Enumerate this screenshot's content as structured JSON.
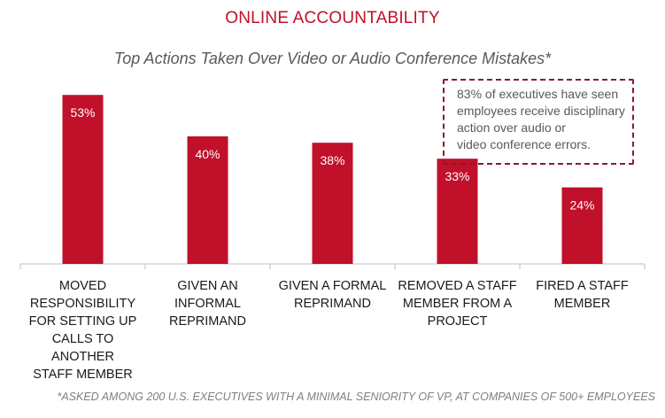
{
  "chart_data": {
    "type": "bar",
    "title": "ONLINE ACCOUNTABILITY",
    "subtitle": "Top Actions Taken Over Video or Audio Conference Mistakes*",
    "categories": [
      [
        "MOVED",
        "RESPONSIBILITY",
        "FOR SETTING UP",
        "CALLS TO ANOTHER",
        "STAFF MEMBER"
      ],
      [
        "GIVEN AN INFORMAL",
        "REPRIMAND"
      ],
      [
        "GIVEN A FORMAL",
        "REPRIMAND"
      ],
      [
        "REMOVED A STAFF",
        "MEMBER FROM A",
        "PROJECT"
      ],
      [
        "FIRED A STAFF",
        "MEMBER"
      ]
    ],
    "values": [
      53,
      40,
      38,
      33,
      24
    ],
    "value_labels": [
      "53%",
      "40%",
      "38%",
      "33%",
      "24%"
    ],
    "ylim": [
      0,
      60
    ],
    "grid": false,
    "bar_color": "#c0102a",
    "label_color": "#ffffff",
    "callout": [
      "83% of executives have seen",
      "employees receive disciplinary",
      "action over audio or",
      "video  conference errors."
    ],
    "footnote": "*ASKED AMONG 200 U.S. EXECUTIVES WITH A MINIMAL SENIORITY OF VP, AT COMPANIES OF 500+ EMPLOYEES"
  }
}
